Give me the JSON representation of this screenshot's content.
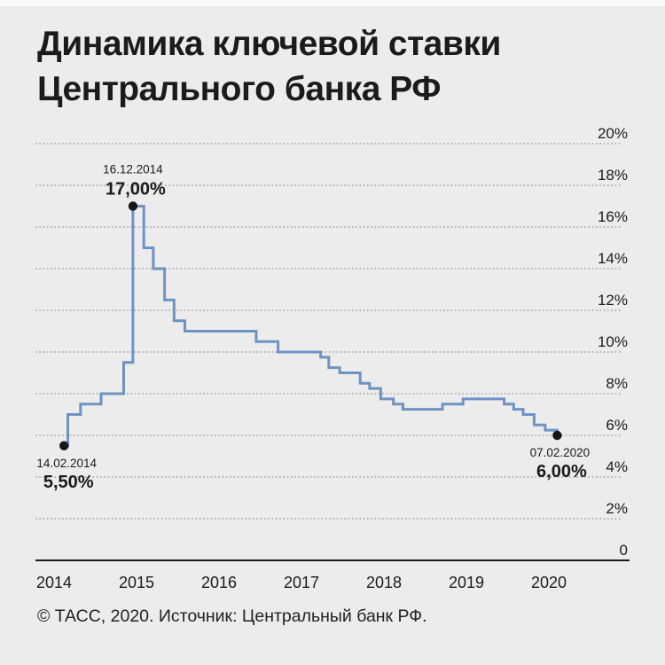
{
  "page": {
    "title_line1": "Динамика ключевой ставки",
    "title_line2": "Центрального банка РФ",
    "footer": "© ТАСС, 2020. Источник: Центральный банк РФ."
  },
  "chart_data": {
    "type": "line",
    "subtype": "step",
    "title": "Динамика ключевой ставки Центрального банка РФ",
    "unit": "%",
    "ylim": [
      0,
      20
    ],
    "grid": "dotted-horizontal",
    "y_ticks": [
      {
        "value": 20,
        "label": "20%"
      },
      {
        "value": 18,
        "label": "18%"
      },
      {
        "value": 16,
        "label": "16%"
      },
      {
        "value": 14,
        "label": "14%"
      },
      {
        "value": 12,
        "label": "12%"
      },
      {
        "value": 10,
        "label": "10%"
      },
      {
        "value": 8,
        "label": "8%"
      },
      {
        "value": 6,
        "label": "6%"
      },
      {
        "value": 4,
        "label": "4%"
      },
      {
        "value": 2,
        "label": "2%"
      },
      {
        "value": 0,
        "label": "0"
      }
    ],
    "x_years": [
      "2014",
      "2015",
      "2016",
      "2017",
      "2018",
      "2019",
      "2020"
    ],
    "points": [
      {
        "date": "2014-02-14",
        "rate": 5.5
      },
      {
        "date": "2014-03-03",
        "rate": 7.0
      },
      {
        "date": "2014-04-28",
        "rate": 7.5
      },
      {
        "date": "2014-07-28",
        "rate": 8.0
      },
      {
        "date": "2014-11-05",
        "rate": 9.5
      },
      {
        "date": "2014-12-16",
        "rate": 17.0
      },
      {
        "date": "2015-02-02",
        "rate": 15.0
      },
      {
        "date": "2015-03-16",
        "rate": 14.0
      },
      {
        "date": "2015-05-05",
        "rate": 12.5
      },
      {
        "date": "2015-06-16",
        "rate": 11.5
      },
      {
        "date": "2015-08-03",
        "rate": 11.0
      },
      {
        "date": "2016-06-14",
        "rate": 10.5
      },
      {
        "date": "2016-09-19",
        "rate": 10.0
      },
      {
        "date": "2017-03-27",
        "rate": 9.75
      },
      {
        "date": "2017-05-02",
        "rate": 9.25
      },
      {
        "date": "2017-06-19",
        "rate": 9.0
      },
      {
        "date": "2017-09-18",
        "rate": 8.5
      },
      {
        "date": "2017-10-30",
        "rate": 8.25
      },
      {
        "date": "2017-12-18",
        "rate": 7.75
      },
      {
        "date": "2018-02-12",
        "rate": 7.5
      },
      {
        "date": "2018-03-26",
        "rate": 7.25
      },
      {
        "date": "2018-09-17",
        "rate": 7.5
      },
      {
        "date": "2018-12-17",
        "rate": 7.75
      },
      {
        "date": "2019-06-17",
        "rate": 7.5
      },
      {
        "date": "2019-07-29",
        "rate": 7.25
      },
      {
        "date": "2019-09-09",
        "rate": 7.0
      },
      {
        "date": "2019-10-28",
        "rate": 6.5
      },
      {
        "date": "2019-12-16",
        "rate": 6.25
      },
      {
        "date": "2020-02-07",
        "rate": 6.0
      }
    ],
    "annotations": [
      {
        "date_label": "16.12.2014",
        "rate_label": "17,00%",
        "date": "2014-12-16",
        "rate": 17.0,
        "placement": "above"
      },
      {
        "date_label": "14.02.2014",
        "rate_label": "5,50%",
        "date": "2014-02-14",
        "rate": 5.5,
        "placement": "below"
      },
      {
        "date_label": "07.02.2020",
        "rate_label": "6,00%",
        "date": "2020-02-07",
        "rate": 6.0,
        "placement": "below"
      }
    ],
    "colors": {
      "line": "#6e93c3",
      "dot": "#161616",
      "grid": "#9b9b9b",
      "axis": "#1a1a1a",
      "text": "#1a1a1a"
    }
  }
}
